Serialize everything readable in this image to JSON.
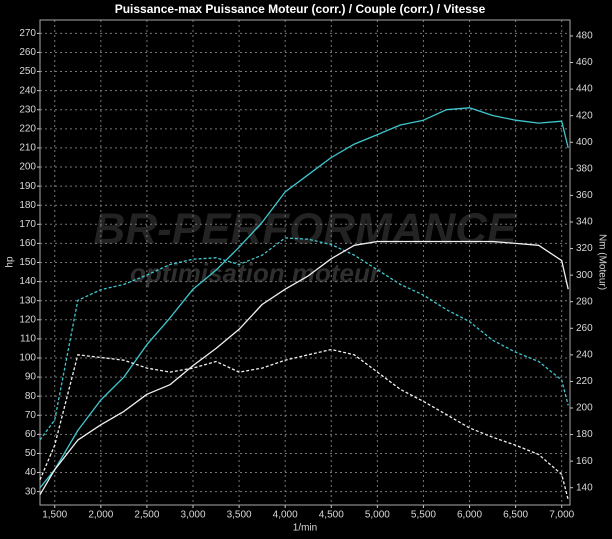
{
  "chart_data": {
    "type": "line",
    "title": "Puissance-max Puissance Moteur (corr.) / Couple (corr.) / Vitesse",
    "x_label": "1/min",
    "y_label": "hp",
    "y2_label": "Nm (Moteur)",
    "annotations": [
      "BR-PERFORMANCE",
      "optimisation moteur"
    ],
    "background": "#000000",
    "grid": true,
    "x": [
      1340,
      1500,
      1750,
      2000,
      2250,
      2500,
      2750,
      3000,
      3250,
      3500,
      3750,
      4000,
      4250,
      4500,
      4750,
      5000,
      5250,
      5500,
      5750,
      6000,
      6250,
      6500,
      6750,
      7000,
      7070
    ],
    "series": [
      {
        "color": "#3fc8d0",
        "dash": "solid",
        "axis": "y",
        "values": [
          32,
          41.5,
          62,
          78,
          90,
          107,
          121,
          136,
          146,
          158,
          171,
          187,
          196,
          205,
          212,
          217,
          222,
          224.5,
          230,
          231,
          227,
          224.5,
          223,
          224,
          210
        ]
      },
      {
        "color": "#3fc8d0",
        "dash": "dashed",
        "axis": "y2",
        "values": [
          176,
          191,
          281,
          289,
          293,
          300,
          308,
          312,
          313,
          308,
          315,
          328,
          327,
          323,
          315,
          304,
          293,
          285,
          274,
          265,
          251,
          242,
          235,
          221,
          202
        ]
      },
      {
        "color": "#f0f0f0",
        "dash": "solid",
        "axis": "y",
        "values": [
          28.4,
          41.5,
          57,
          65,
          72,
          81,
          86,
          96,
          105,
          115,
          128,
          136,
          143,
          152,
          159,
          161,
          161,
          161,
          161,
          161,
          161,
          160,
          159,
          151,
          136
        ]
      },
      {
        "color": "#f0f0f0",
        "dash": "dashed",
        "axis": "y2",
        "values": [
          146,
          172,
          240,
          238,
          236,
          230,
          227,
          230,
          235,
          227,
          230,
          236,
          240,
          244,
          240,
          227,
          214,
          205,
          195,
          185,
          178,
          172,
          165,
          150,
          131
        ]
      }
    ],
    "xlim": [
      1340,
      7090
    ],
    "ylim": [
      23,
      277
    ],
    "y2lim": [
      127,
      492
    ],
    "xticks": [
      {
        "value": 1500,
        "label": "1,500"
      },
      {
        "value": 2000,
        "label": "2,000"
      },
      {
        "value": 2500,
        "label": "2,500"
      },
      {
        "value": 3000,
        "label": "3,000"
      },
      {
        "value": 3500,
        "label": "3,500"
      },
      {
        "value": 4000,
        "label": "4,000"
      },
      {
        "value": 4500,
        "label": "4,500"
      },
      {
        "value": 5000,
        "label": "5,000"
      },
      {
        "value": 5500,
        "label": "5,500"
      },
      {
        "value": 6000,
        "label": "6,000"
      },
      {
        "value": 6500,
        "label": "6,500"
      },
      {
        "value": 7000,
        "label": "7,000"
      }
    ],
    "yticks": [
      30,
      40,
      50,
      60,
      70,
      80,
      90,
      100,
      110,
      120,
      130,
      140,
      150,
      160,
      170,
      180,
      190,
      200,
      210,
      220,
      230,
      240,
      250,
      260,
      270
    ],
    "y2ticks": [
      140,
      160,
      180,
      200,
      220,
      240,
      260,
      280,
      300,
      320,
      340,
      360,
      380,
      400,
      420,
      440,
      460,
      480
    ]
  }
}
